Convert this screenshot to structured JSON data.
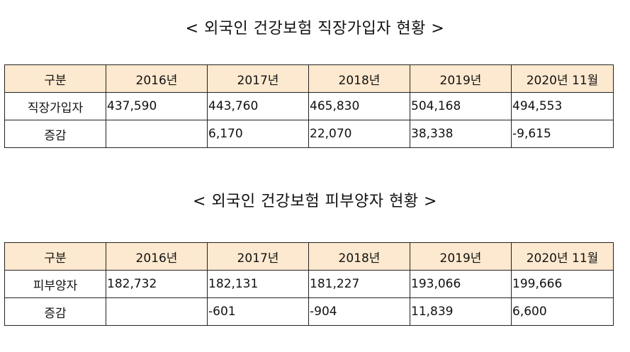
{
  "tables": [
    {
      "title": "< 외국인 건강보험 직장가입자 현황 >",
      "headers": [
        "구분",
        "2016년",
        "2017년",
        "2018년",
        "2019년",
        "2020년 11월"
      ],
      "rows": [
        {
          "label": "직장가입자",
          "cells": [
            "437,590",
            "443,760",
            "465,830",
            "504,168",
            "494,553"
          ]
        },
        {
          "label": "증감",
          "cells": [
            "",
            "6,170",
            "22,070",
            "38,338",
            "-9,615"
          ]
        }
      ]
    },
    {
      "title": "< 외국인 건강보험 피부양자 현황 >",
      "headers": [
        "구분",
        "2016년",
        "2017년",
        "2018년",
        "2019년",
        "2020년 11월"
      ],
      "rows": [
        {
          "label": "피부양자",
          "cells": [
            "182,732",
            "182,131",
            "181,227",
            "193,066",
            "199,666"
          ]
        },
        {
          "label": "증감",
          "cells": [
            "",
            "-601",
            "-904",
            "11,839",
            "6,600"
          ]
        }
      ]
    }
  ],
  "colors": {
    "header_background": "#fde9cf",
    "border": "#222222"
  }
}
